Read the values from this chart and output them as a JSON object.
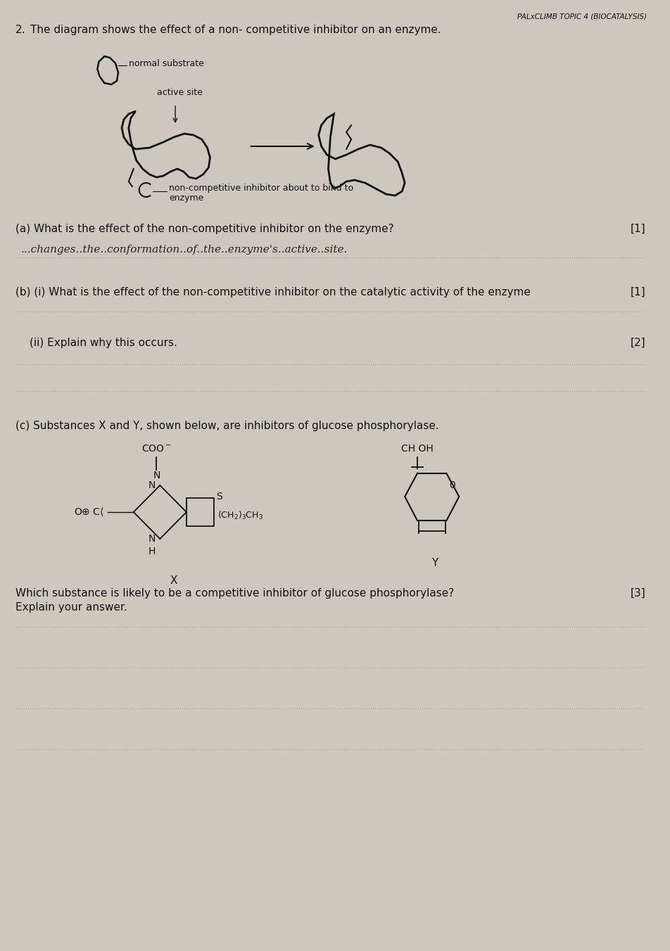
{
  "bg_color": "#ccc8c0",
  "header_text": "PALxCLIMB TOPIC 4 (BIOCATALYSIS)",
  "question_num": "2.",
  "intro_text": "The diagram shows the effect of a non- competitive inhibitor on an enzyme.",
  "label_normal_substrate": "normal substrate",
  "label_active_site": "active site",
  "label_non_comp": "non-competitive inhibitor about to bind to",
  "label_enzyme": "enzyme",
  "qa_text": "(a) What is the effect of the non-competitive inhibitor on the enzyme?",
  "qa_mark": "[1]",
  "qa_answer": "...changes..the..conformation..of..the..enzyme’s..active..site.",
  "qb_i_text": "(b) (i) What is the effect of the non-competitive inhibitor on the catalytic activity of the enzyme",
  "qb_i_mark": "[1]",
  "qb_ii_text": "(ii) Explain why this occurs.",
  "qb_ii_mark": "[2]",
  "qc_text": "(c) Substances X and Y, shown below, are inhibitors of glucose phosphorylase.",
  "qc_which": "Which substance is likely to be a competitive inhibitor of glucose phosphorylase?",
  "qc_mark": "[3]",
  "qc_explain": "Explain your answer.",
  "text_color": "#111111",
  "dotted_line_color": "#999999",
  "font_size_main": 11,
  "font_size_small": 9
}
